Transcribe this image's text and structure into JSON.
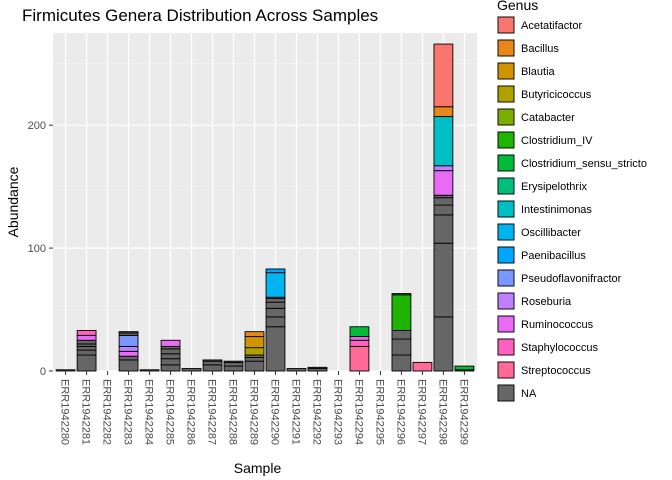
{
  "chart_data": {
    "type": "bar",
    "stacked": true,
    "title": "Firmicutes Genera Distribution Across Samples",
    "xlabel": "Sample",
    "ylabel": "Abundance",
    "ylim": [
      0,
      275
    ],
    "yticks": [
      0,
      100,
      200
    ],
    "legend_title": "Genus",
    "legend_position": "right",
    "grid": true,
    "panel_background": "#ebebeb",
    "categories": [
      "ERR1942280",
      "ERR1942281",
      "ERR1942282",
      "ERR1942283",
      "ERR1942284",
      "ERR1942285",
      "ERR1942286",
      "ERR1942287",
      "ERR1942288",
      "ERR1942289",
      "ERR1942290",
      "ERR1942291",
      "ERR1942292",
      "ERR1942293",
      "ERR1942294",
      "ERR1942295",
      "ERR1942296",
      "ERR1942297",
      "ERR1942298",
      "ERR1942299"
    ],
    "genera": [
      {
        "name": "Acetatifactor",
        "color": "#F8766D"
      },
      {
        "name": "Bacillus",
        "color": "#E7861B"
      },
      {
        "name": "Blautia",
        "color": "#D09400"
      },
      {
        "name": "Butyricicoccus",
        "color": "#AFA100"
      },
      {
        "name": "Catabacter",
        "color": "#7CAE00"
      },
      {
        "name": "Clostridium_IV",
        "color": "#1EB400"
      },
      {
        "name": "Clostridium_sensu_stricto",
        "color": "#00BA38"
      },
      {
        "name": "Erysipelothrix",
        "color": "#00BF7D"
      },
      {
        "name": "Intestinimonas",
        "color": "#00BFC4"
      },
      {
        "name": "Oscillibacter",
        "color": "#00B4EF"
      },
      {
        "name": "Paenibacillus",
        "color": "#00A5FF"
      },
      {
        "name": "Pseudoflavonifractor",
        "color": "#7997FF"
      },
      {
        "name": "Roseburia",
        "color": "#BF80FF"
      },
      {
        "name": "Ruminococcus",
        "color": "#E76BF3"
      },
      {
        "name": "Staphylococcus",
        "color": "#FF61C3"
      },
      {
        "name": "Streptococcus",
        "color": "#FF6A98"
      },
      {
        "name": "NA",
        "color": "#666666"
      }
    ],
    "stacks": [
      [
        {
          "genus": "NA",
          "value": 1
        }
      ],
      [
        {
          "genus": "NA",
          "value": 13
        },
        {
          "genus": "NA",
          "value": 4
        },
        {
          "genus": "NA",
          "value": 3
        },
        {
          "genus": "NA",
          "value": 2
        },
        {
          "genus": "NA",
          "value": 3
        },
        {
          "genus": "Ruminococcus",
          "value": 4
        },
        {
          "genus": "Staphylococcus",
          "value": 4
        }
      ],
      [],
      [
        {
          "genus": "NA",
          "value": 9
        },
        {
          "genus": "NA",
          "value": 3
        },
        {
          "genus": "Ruminococcus",
          "value": 4
        },
        {
          "genus": "Roseburia",
          "value": 4
        },
        {
          "genus": "Pseudoflavonifractor",
          "value": 9
        },
        {
          "genus": "NA",
          "value": 2
        },
        {
          "genus": "NA",
          "value": 1
        }
      ],
      [
        {
          "genus": "NA",
          "value": 1
        }
      ],
      [
        {
          "genus": "NA",
          "value": 5
        },
        {
          "genus": "NA",
          "value": 5
        },
        {
          "genus": "NA",
          "value": 4
        },
        {
          "genus": "NA",
          "value": 4
        },
        {
          "genus": "NA",
          "value": 2
        },
        {
          "genus": "Ruminococcus",
          "value": 5
        }
      ],
      [
        {
          "genus": "NA",
          "value": 2
        }
      ],
      [
        {
          "genus": "NA",
          "value": 5
        },
        {
          "genus": "NA",
          "value": 3
        },
        {
          "genus": "NA",
          "value": 1
        }
      ],
      [
        {
          "genus": "NA",
          "value": 4
        },
        {
          "genus": "NA",
          "value": 3
        },
        {
          "genus": "NA",
          "value": 1
        }
      ],
      [
        {
          "genus": "NA",
          "value": 8
        },
        {
          "genus": "NA",
          "value": 3
        },
        {
          "genus": "NA",
          "value": 2
        },
        {
          "genus": "Butyricicoccus",
          "value": 6
        },
        {
          "genus": "Blautia",
          "value": 9
        },
        {
          "genus": "Bacillus",
          "value": 4
        }
      ],
      [
        {
          "genus": "NA",
          "value": 36
        },
        {
          "genus": "NA",
          "value": 8
        },
        {
          "genus": "NA",
          "value": 7
        },
        {
          "genus": "NA",
          "value": 5
        },
        {
          "genus": "NA",
          "value": 3
        },
        {
          "genus": "Intestinimonas",
          "value": 1
        },
        {
          "genus": "Oscillibacter",
          "value": 20
        },
        {
          "genus": "Paenibacillus",
          "value": 3
        }
      ],
      [
        {
          "genus": "NA",
          "value": 2
        }
      ],
      [
        {
          "genus": "NA",
          "value": 2
        },
        {
          "genus": "NA",
          "value": 1
        }
      ],
      [],
      [
        {
          "genus": "Streptococcus",
          "value": 20
        },
        {
          "genus": "Staphylococcus",
          "value": 5
        },
        {
          "genus": "Ruminococcus",
          "value": 3
        },
        {
          "genus": "Clostridium_sensu_stricto",
          "value": 8
        }
      ],
      [],
      [
        {
          "genus": "NA",
          "value": 13
        },
        {
          "genus": "NA",
          "value": 13
        },
        {
          "genus": "NA",
          "value": 7
        },
        {
          "genus": "Clostridium_IV",
          "value": 29
        },
        {
          "genus": "Clostridium_sensu_stricto",
          "value": 1
        }
      ],
      [
        {
          "genus": "Streptococcus",
          "value": 7
        }
      ],
      [
        {
          "genus": "NA",
          "value": 44
        },
        {
          "genus": "NA",
          "value": 60
        },
        {
          "genus": "NA",
          "value": 23
        },
        {
          "genus": "NA",
          "value": 8
        },
        {
          "genus": "NA",
          "value": 6
        },
        {
          "genus": "NA",
          "value": 2
        },
        {
          "genus": "Ruminococcus",
          "value": 20
        },
        {
          "genus": "Roseburia",
          "value": 4
        },
        {
          "genus": "Intestinimonas",
          "value": 40
        },
        {
          "genus": "Bacillus",
          "value": 8
        },
        {
          "genus": "Acetatifactor",
          "value": 51
        }
      ],
      [
        {
          "genus": "NA",
          "value": 1
        },
        {
          "genus": "Clostridium_sensu_stricto",
          "value": 3
        }
      ]
    ]
  }
}
